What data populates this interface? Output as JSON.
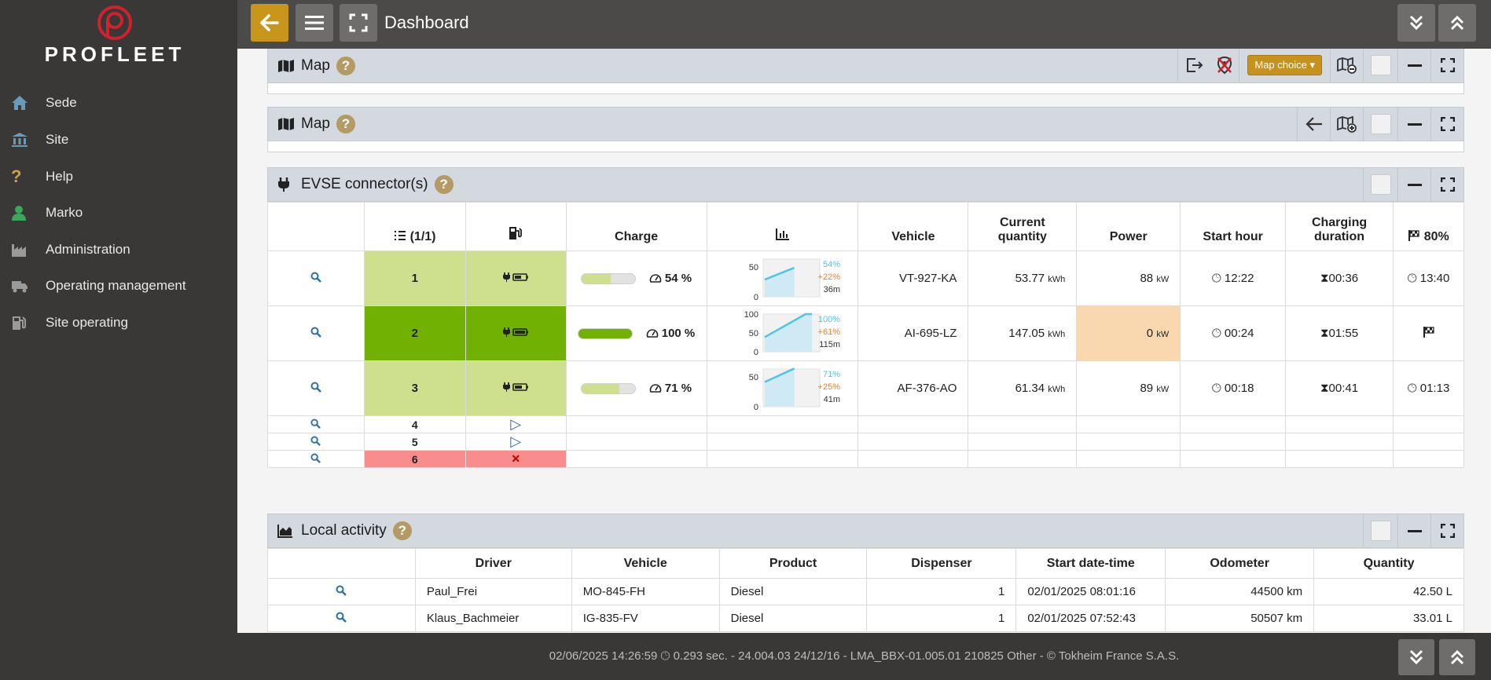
{
  "app": {
    "logo_text": "PROFLEET",
    "page_title": "Dashboard"
  },
  "sidebar": {
    "items": [
      {
        "label": "Sede",
        "icon": "home-icon"
      },
      {
        "label": "Site",
        "icon": "bank-icon"
      },
      {
        "label": "Help",
        "icon": "question-icon"
      },
      {
        "label": "Marko",
        "icon": "user-icon"
      },
      {
        "label": "Administration",
        "icon": "factory-icon"
      },
      {
        "label": "Operating management",
        "icon": "truck-icon"
      },
      {
        "label": "Site operating",
        "icon": "fuel-pump-icon"
      }
    ]
  },
  "panels": {
    "map1": {
      "title": "Map",
      "map_choice": "Map choice"
    },
    "map2": {
      "title": "Map"
    },
    "evse": {
      "title": "EVSE connector(s)"
    },
    "activity": {
      "title": "Local activity"
    }
  },
  "evse": {
    "headers": {
      "index": "(1/1)",
      "charge": "Charge",
      "vehicle": "Vehicle",
      "current_quantity_1": "Current",
      "current_quantity_2": "quantity",
      "power": "Power",
      "start_hour": "Start hour",
      "duration_1": "Charging",
      "duration_2": "duration",
      "target": "80%"
    },
    "rows": [
      {
        "num": "1",
        "charge_pct": 54,
        "charge_label": "54 %",
        "spark_ticks": [
          "50",
          "0"
        ],
        "spark_pct": "54%",
        "spark_delta": "+22%",
        "spark_time": "36m",
        "vehicle": "VT-927-KA",
        "quantity": "53.77",
        "quantity_unit": "kWh",
        "power": "88",
        "power_unit": "kW",
        "start": "12:22",
        "duration": "00:36",
        "end": "13:40"
      },
      {
        "num": "2",
        "charge_pct": 100,
        "charge_label": "100 %",
        "spark_ticks": [
          "100",
          "50",
          "0"
        ],
        "spark_pct": "100%",
        "spark_delta": "+61%",
        "spark_time": "115m",
        "vehicle": "AI-695-LZ",
        "quantity": "147.05",
        "quantity_unit": "kWh",
        "power": "0",
        "power_unit": "kW",
        "start": "00:24",
        "duration": "01:55",
        "end": ""
      },
      {
        "num": "3",
        "charge_pct": 71,
        "charge_label": "71 %",
        "spark_ticks": [
          "50",
          "0"
        ],
        "spark_pct": "71%",
        "spark_delta": "+25%",
        "spark_time": "41m",
        "vehicle": "AF-376-AO",
        "quantity": "61.34",
        "quantity_unit": "kWh",
        "power": "89",
        "power_unit": "kW",
        "start": "00:18",
        "duration": "00:41",
        "end": "01:13"
      }
    ],
    "small_rows": [
      {
        "num": "4",
        "status": "▷"
      },
      {
        "num": "5",
        "status": "▷"
      },
      {
        "num": "6",
        "status": "✕"
      }
    ]
  },
  "activity": {
    "headers": [
      "Driver",
      "Vehicle",
      "Product",
      "Dispenser",
      "Start date-time",
      "Odometer",
      "Quantity"
    ],
    "rows": [
      {
        "driver": "Paul_Frei",
        "vehicle": "MO-845-FH",
        "product": "Diesel",
        "dispenser": "1",
        "start": "02/01/2025 08:01:16",
        "odometer": "44500 km",
        "quantity": "42.50 L"
      },
      {
        "driver": "Klaus_Bachmeier",
        "vehicle": "IG-835-FV",
        "product": "Diesel",
        "dispenser": "1",
        "start": "02/01/2025 07:52:43",
        "odometer": "50507 km",
        "quantity": "33.01 L"
      }
    ]
  },
  "footer": {
    "text_left": "02/06/2025 14:26:59",
    "text_right": "0.293 sec. - 24.004.03 24/12/16 - LMA_BBX-01.005.01 210825 Other - © Tokheim France S.A.S."
  },
  "colors": {
    "accent": "#c9961c",
    "sidebar": "#3a3836",
    "charge_partial": "#cee08e",
    "charge_full": "#70b101",
    "error": "#f98c8c",
    "spark_line": "#4fc3e8",
    "delta": "#e8802c"
  }
}
